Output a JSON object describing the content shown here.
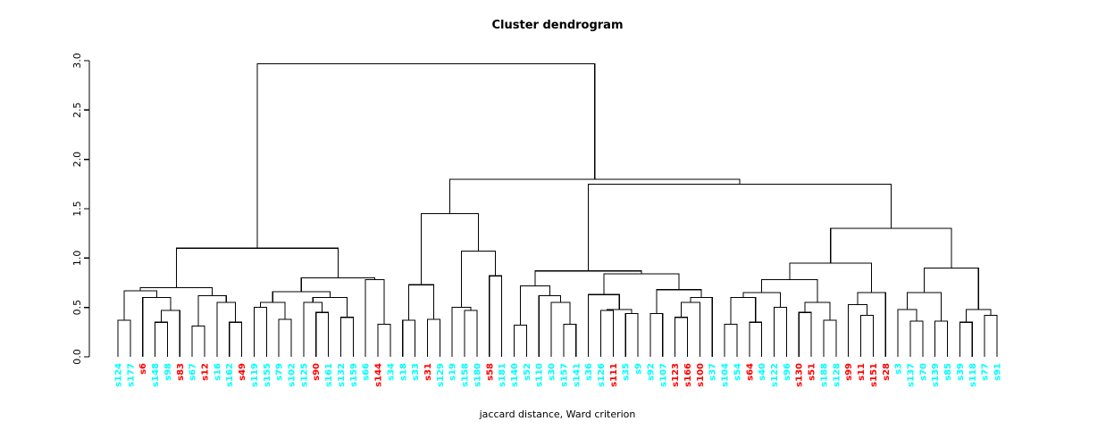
{
  "chart_data": {
    "type": "dendrogram",
    "title": "Cluster dendrogram",
    "xlabel": "jaccard distance, Ward criterion",
    "ylabel": "",
    "ylim": [
      0,
      3
    ],
    "yticks": [
      "0.0",
      "0.5",
      "1.0",
      "1.5",
      "2.0",
      "2.5",
      "3.0"
    ],
    "grid": false,
    "colors": {
      "cyan": "#00FFFF",
      "red": "#FF0000",
      "line": "#000000"
    },
    "leaves": [
      {
        "label": "s124",
        "color": "cyan"
      },
      {
        "label": "s177",
        "color": "cyan"
      },
      {
        "label": "s6",
        "color": "red"
      },
      {
        "label": "s148",
        "color": "cyan"
      },
      {
        "label": "s98",
        "color": "cyan"
      },
      {
        "label": "s83",
        "color": "red"
      },
      {
        "label": "s67",
        "color": "cyan"
      },
      {
        "label": "s12",
        "color": "red"
      },
      {
        "label": "s16",
        "color": "cyan"
      },
      {
        "label": "s162",
        "color": "cyan"
      },
      {
        "label": "s49",
        "color": "red"
      },
      {
        "label": "s119",
        "color": "cyan"
      },
      {
        "label": "s155",
        "color": "cyan"
      },
      {
        "label": "s79",
        "color": "cyan"
      },
      {
        "label": "s102",
        "color": "cyan"
      },
      {
        "label": "s125",
        "color": "cyan"
      },
      {
        "label": "s90",
        "color": "red"
      },
      {
        "label": "s161",
        "color": "cyan"
      },
      {
        "label": "s132",
        "color": "cyan"
      },
      {
        "label": "s159",
        "color": "cyan"
      },
      {
        "label": "s66",
        "color": "cyan"
      },
      {
        "label": "s144",
        "color": "red"
      },
      {
        "label": "s34",
        "color": "cyan"
      },
      {
        "label": "s18",
        "color": "cyan"
      },
      {
        "label": "s33",
        "color": "cyan"
      },
      {
        "label": "s31",
        "color": "red"
      },
      {
        "label": "s129",
        "color": "cyan"
      },
      {
        "label": "s19",
        "color": "cyan"
      },
      {
        "label": "s158",
        "color": "cyan"
      },
      {
        "label": "s180",
        "color": "cyan"
      },
      {
        "label": "s58",
        "color": "red"
      },
      {
        "label": "s181",
        "color": "cyan"
      },
      {
        "label": "s140",
        "color": "cyan"
      },
      {
        "label": "s52",
        "color": "cyan"
      },
      {
        "label": "s110",
        "color": "cyan"
      },
      {
        "label": "s30",
        "color": "cyan"
      },
      {
        "label": "s157",
        "color": "cyan"
      },
      {
        "label": "s141",
        "color": "cyan"
      },
      {
        "label": "s36",
        "color": "cyan"
      },
      {
        "label": "s126",
        "color": "cyan"
      },
      {
        "label": "s111",
        "color": "red"
      },
      {
        "label": "s35",
        "color": "cyan"
      },
      {
        "label": "s9",
        "color": "cyan"
      },
      {
        "label": "s92",
        "color": "cyan"
      },
      {
        "label": "s107",
        "color": "cyan"
      },
      {
        "label": "s123",
        "color": "red"
      },
      {
        "label": "s166",
        "color": "red"
      },
      {
        "label": "s100",
        "color": "red"
      },
      {
        "label": "s37",
        "color": "cyan"
      },
      {
        "label": "s104",
        "color": "cyan"
      },
      {
        "label": "s54",
        "color": "cyan"
      },
      {
        "label": "s64",
        "color": "red"
      },
      {
        "label": "s40",
        "color": "cyan"
      },
      {
        "label": "s122",
        "color": "cyan"
      },
      {
        "label": "s96",
        "color": "cyan"
      },
      {
        "label": "s130",
        "color": "red"
      },
      {
        "label": "s51",
        "color": "red"
      },
      {
        "label": "s188",
        "color": "cyan"
      },
      {
        "label": "s128",
        "color": "cyan"
      },
      {
        "label": "s99",
        "color": "red"
      },
      {
        "label": "s11",
        "color": "red"
      },
      {
        "label": "s151",
        "color": "red"
      },
      {
        "label": "s28",
        "color": "red"
      },
      {
        "label": "s3",
        "color": "cyan"
      },
      {
        "label": "s137",
        "color": "cyan"
      },
      {
        "label": "s70",
        "color": "cyan"
      },
      {
        "label": "s139",
        "color": "cyan"
      },
      {
        "label": "s85",
        "color": "cyan"
      },
      {
        "label": "s39",
        "color": "cyan"
      },
      {
        "label": "s118",
        "color": "cyan"
      },
      {
        "label": "s77",
        "color": "cyan"
      },
      {
        "label": "s91",
        "color": "cyan"
      }
    ],
    "tree": [
      2.97,
      [
        1.1,
        [
          0.7,
          [
            0.67,
            [
              0.37,
              0,
              1
            ],
            [
              0.6,
              2,
              [
                0.47,
                [
                  0.35,
                  3,
                  4
                ],
                5
              ]
            ]
          ],
          [
            0.62,
            [
              0.31,
              6,
              7
            ],
            [
              0.55,
              8,
              [
                0.35,
                9,
                10
              ]
            ]
          ]
        ],
        [
          0.8,
          [
            0.66,
            [
              0.55,
              [
                0.5,
                11,
                12
              ],
              [
                0.38,
                13,
                14
              ]
            ],
            [
              0.6,
              [
                0.55,
                15,
                [
                  0.45,
                  16,
                  17
                ]
              ],
              [
                0.4,
                18,
                19
              ]
            ]
          ],
          [
            0.78,
            20,
            [
              0.33,
              21,
              22
            ]
          ]
        ]
      ],
      [
        1.8,
        [
          1.45,
          [
            0.73,
            [
              0.37,
              23,
              24
            ],
            [
              0.38,
              25,
              26
            ]
          ],
          [
            1.07,
            [
              0.5,
              27,
              [
                0.47,
                28,
                29
              ]
            ],
            [
              0.82,
              30,
              31
            ]
          ]
        ],
        [
          1.75,
          [
            0.87,
            [
              0.72,
              [
                0.32,
                32,
                33
              ],
              [
                0.62,
                34,
                [
                  0.55,
                  35,
                  [
                    0.33,
                    36,
                    37
                  ]
                ]
              ]
            ],
            [
              0.84,
              [
                0.63,
                38,
                [
                  0.48,
                  [
                    0.47,
                    39,
                    40
                  ],
                  [
                    0.44,
                    41,
                    42
                  ]
                ]
              ],
              [
                0.68,
                [
                  0.44,
                  43,
                  44
                ],
                [
                  0.6,
                  [
                    0.55,
                    [
                      0.4,
                      45,
                      46
                    ],
                    47
                  ],
                  48
                ]
              ]
            ]
          ],
          [
            1.3,
            [
              0.95,
              [
                0.78,
                [
                  0.65,
                  [
                    0.6,
                    [
                      0.33,
                      49,
                      50
                    ],
                    [
                      0.35,
                      51,
                      52
                    ]
                  ],
                  [
                    0.5,
                    53,
                    54
                  ]
                ],
                [
                  0.55,
                  [
                    0.45,
                    55,
                    56
                  ],
                  [
                    0.37,
                    57,
                    58
                  ]
                ]
              ],
              [
                0.65,
                [
                  0.53,
                  59,
                  [
                    0.42,
                    60,
                    61
                  ]
                ],
                62
              ]
            ],
            [
              0.9,
              [
                0.65,
                [
                  0.48,
                  63,
                  [
                    0.36,
                    64,
                    65
                  ]
                ],
                [
                  0.36,
                  66,
                  67
                ]
              ],
              [
                0.48,
                [
                  0.35,
                  68,
                  69
                ],
                [
                  0.42,
                  70,
                  71
                ]
              ]
            ]
          ]
        ]
      ]
    ]
  }
}
